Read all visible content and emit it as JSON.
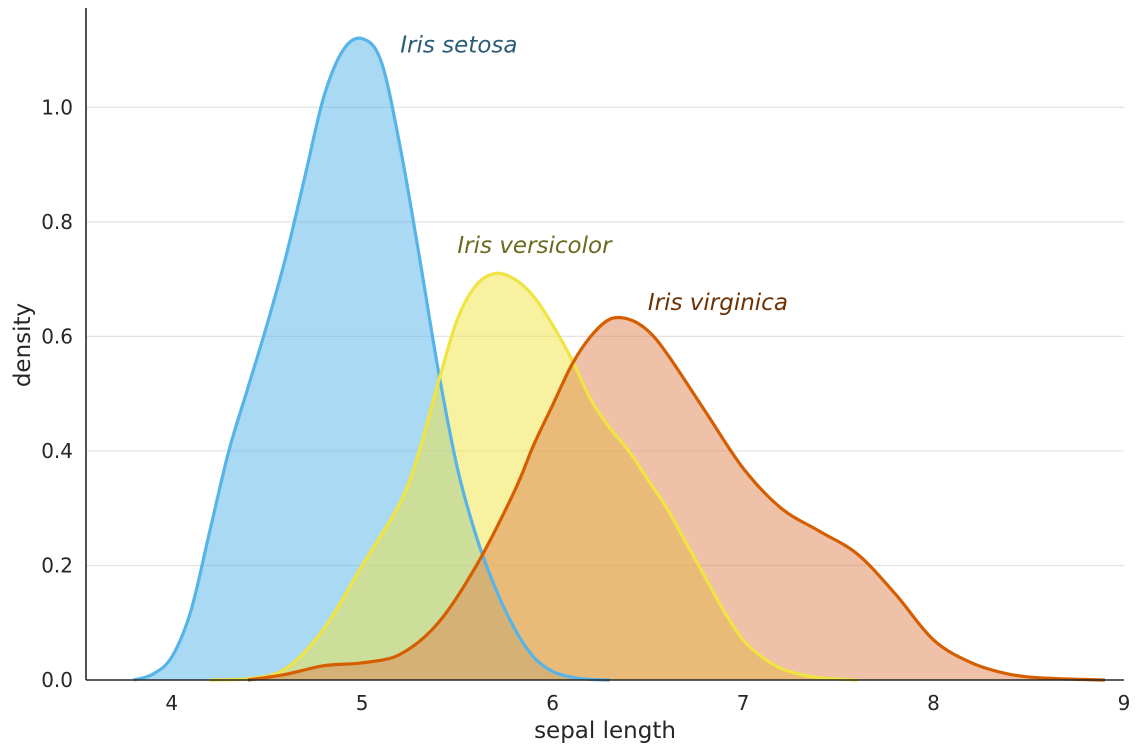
{
  "chart_data": {
    "type": "area",
    "title": "",
    "xlabel": "sepal length",
    "ylabel": "density",
    "xlim": [
      3.55,
      9.0
    ],
    "ylim": [
      0,
      1.17
    ],
    "x_ticks": [
      4,
      5,
      6,
      7,
      8,
      9
    ],
    "y_ticks": [
      0.0,
      0.2,
      0.4,
      0.6,
      0.8,
      1.0
    ],
    "x_tick_labels": [
      "4",
      "5",
      "6",
      "7",
      "8",
      "9"
    ],
    "y_tick_labels": [
      "0.0",
      "0.2",
      "0.4",
      "0.6",
      "0.8",
      "1.0"
    ],
    "grid": "horizontal",
    "legend": "none",
    "series": [
      {
        "name": "Iris setosa",
        "color": "#56b4e9",
        "fill_color": "#56b4e9",
        "label_color": "#2a5b78",
        "label_position": {
          "x": 5.2,
          "y": 1.11
        },
        "x": [
          3.8,
          3.9,
          4.0,
          4.1,
          4.2,
          4.3,
          4.4,
          4.5,
          4.6,
          4.7,
          4.8,
          4.9,
          5.0,
          5.1,
          5.2,
          5.3,
          5.4,
          5.5,
          5.6,
          5.7,
          5.8,
          5.9,
          6.0,
          6.1,
          6.2,
          6.3
        ],
        "values": [
          0.0,
          0.01,
          0.04,
          0.12,
          0.26,
          0.4,
          0.51,
          0.62,
          0.74,
          0.88,
          1.02,
          1.1,
          1.12,
          1.08,
          0.93,
          0.74,
          0.54,
          0.37,
          0.25,
          0.16,
          0.09,
          0.04,
          0.015,
          0.005,
          0.001,
          0.0
        ]
      },
      {
        "name": "Iris versicolor",
        "color": "#f0e442",
        "fill_color": "#f0e442",
        "label_color": "#6b6a20",
        "label_position": {
          "x": 5.5,
          "y": 0.76
        },
        "x": [
          4.2,
          4.4,
          4.6,
          4.8,
          5.0,
          5.2,
          5.3,
          5.4,
          5.5,
          5.6,
          5.7,
          5.8,
          5.9,
          6.0,
          6.1,
          6.2,
          6.3,
          6.4,
          6.5,
          6.6,
          6.7,
          6.8,
          6.9,
          7.0,
          7.1,
          7.2,
          7.3,
          7.4,
          7.6
        ],
        "values": [
          0.0,
          0.002,
          0.02,
          0.09,
          0.2,
          0.31,
          0.4,
          0.52,
          0.63,
          0.69,
          0.71,
          0.7,
          0.67,
          0.62,
          0.56,
          0.49,
          0.44,
          0.4,
          0.35,
          0.3,
          0.24,
          0.18,
          0.12,
          0.07,
          0.04,
          0.02,
          0.01,
          0.004,
          0.0
        ]
      },
      {
        "name": "Iris virginica",
        "color": "#d55e00",
        "fill_color": "#dd8452",
        "label_color": "#6e3000",
        "label_position": {
          "x": 6.5,
          "y": 0.66
        },
        "x": [
          4.4,
          4.6,
          4.8,
          5.0,
          5.2,
          5.4,
          5.6,
          5.8,
          5.9,
          6.0,
          6.1,
          6.2,
          6.3,
          6.4,
          6.5,
          6.6,
          6.8,
          7.0,
          7.2,
          7.4,
          7.6,
          7.8,
          8.0,
          8.2,
          8.4,
          8.6,
          8.9
        ],
        "values": [
          0.0,
          0.01,
          0.025,
          0.03,
          0.045,
          0.1,
          0.2,
          0.33,
          0.41,
          0.48,
          0.55,
          0.6,
          0.63,
          0.63,
          0.61,
          0.57,
          0.47,
          0.37,
          0.3,
          0.26,
          0.22,
          0.15,
          0.07,
          0.03,
          0.01,
          0.003,
          0.0
        ]
      }
    ]
  }
}
